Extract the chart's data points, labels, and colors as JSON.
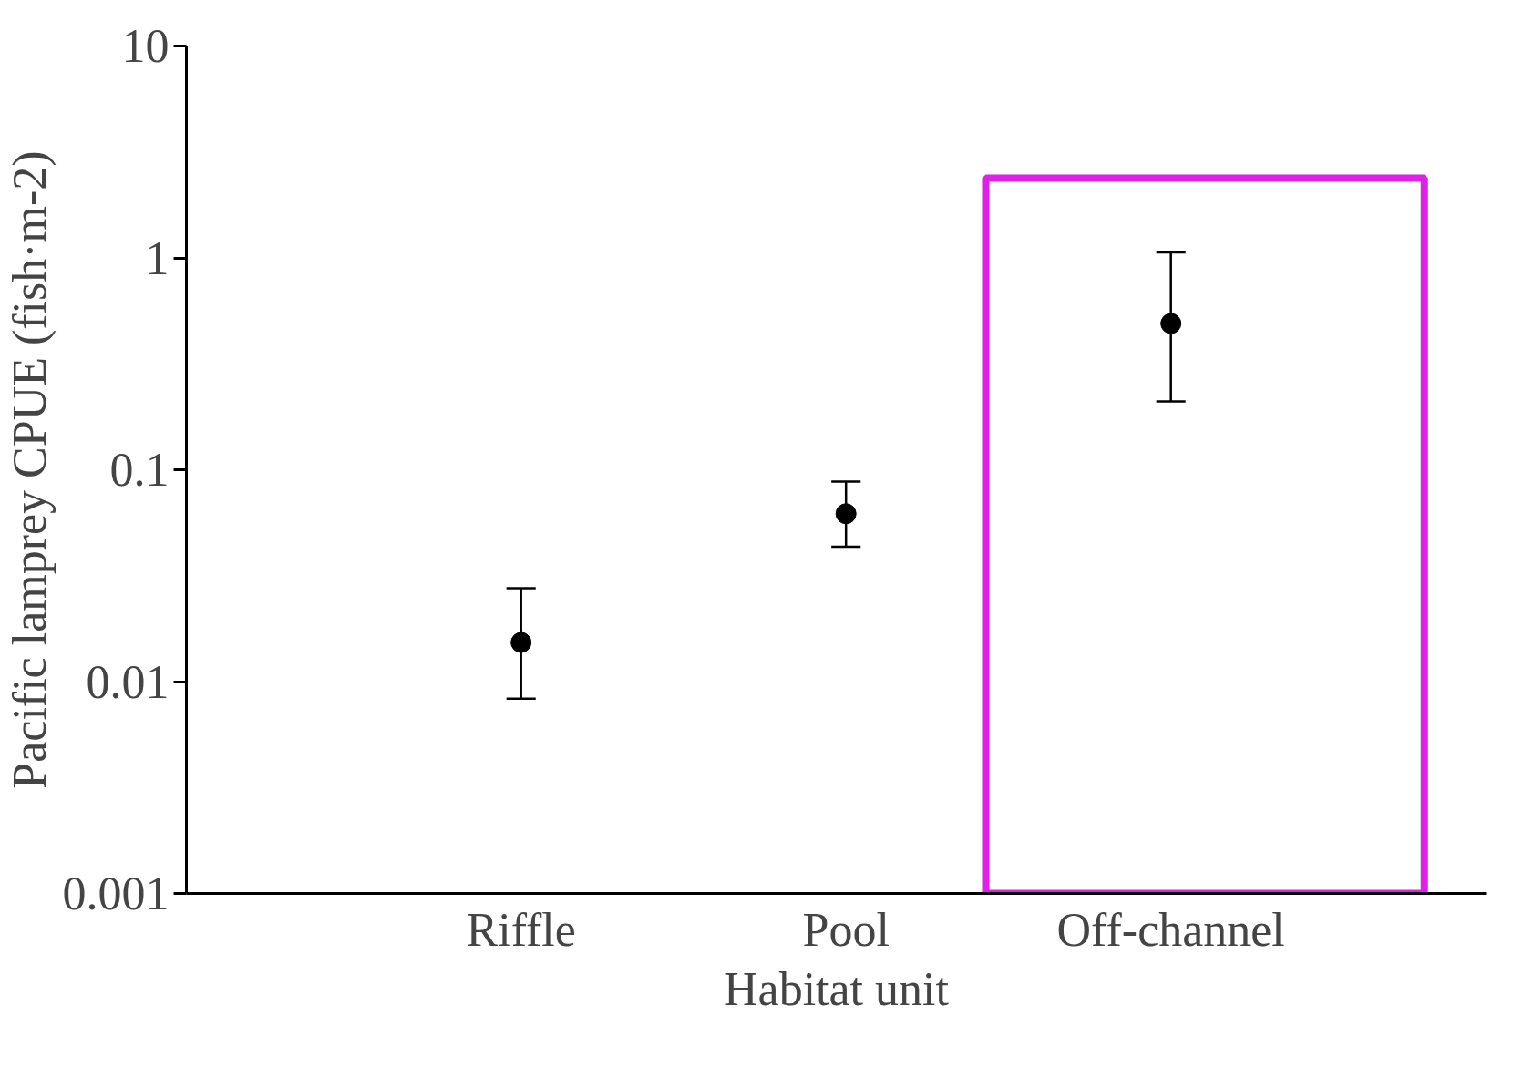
{
  "chart_data": {
    "type": "scatter",
    "xlabel": "Habitat unit",
    "ylabel": "Pacific lamprey CPUE (fish·m-2)",
    "categories": [
      "Riffle",
      "Pool",
      "Off-channel"
    ],
    "series": [
      {
        "color": "#000000",
        "values": [
          0.0153,
          0.062,
          0.49
        ],
        "errors": [
          [
            0.0083,
            0.0276
          ],
          [
            0.0433,
            0.088
          ],
          [
            0.21,
            1.06
          ]
        ]
      }
    ],
    "log": true,
    "ylim": [
      0.001,
      10
    ],
    "yticks": [
      0.001,
      0.01,
      0.1,
      1,
      10
    ],
    "grid": false,
    "marker": "circle"
  }
}
